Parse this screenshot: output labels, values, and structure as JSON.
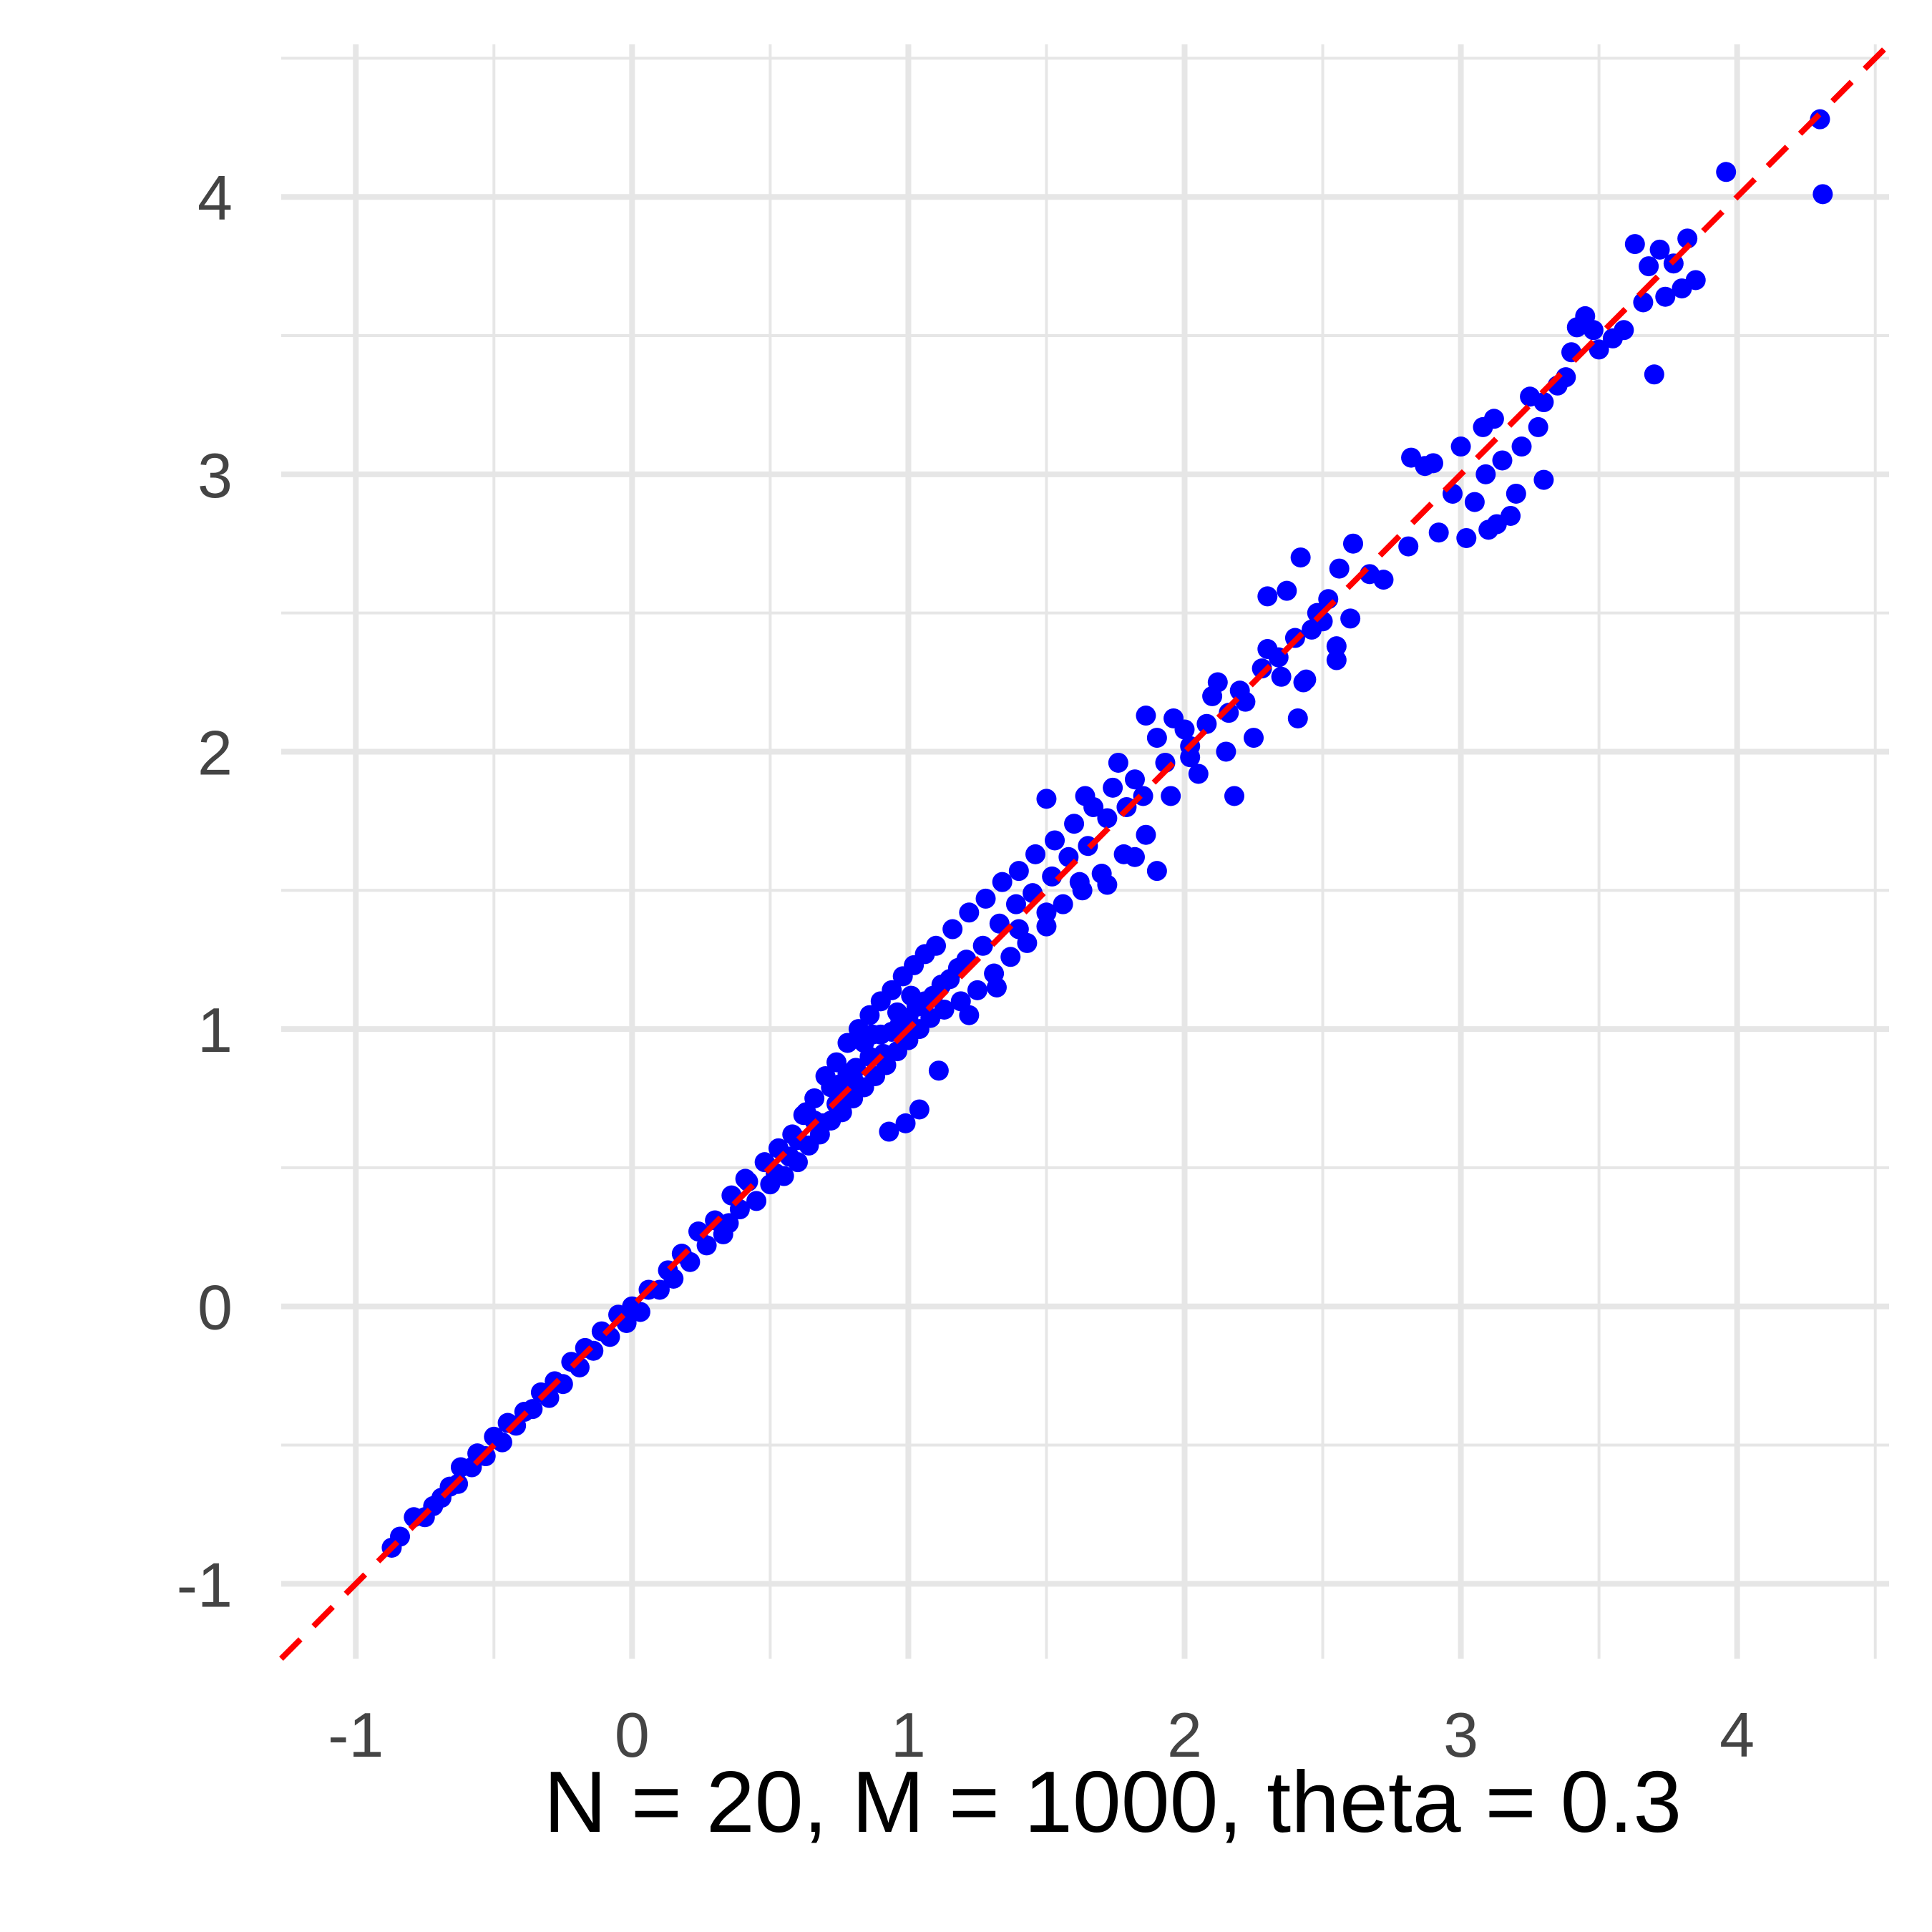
{
  "chart_data": {
    "type": "scatter",
    "title": "",
    "xlabel": "N = 20, M = 1000, theta = 0.3",
    "ylabel": "",
    "xlim": [
      -1.27,
      4.55
    ],
    "ylim": [
      -1.27,
      4.55
    ],
    "x_ticks": [
      -1,
      0,
      1,
      2,
      3,
      4
    ],
    "y_ticks": [
      -1,
      0,
      1,
      2,
      3,
      4
    ],
    "x_tick_labels": [
      "-1",
      "0",
      "1",
      "2",
      "3",
      "4"
    ],
    "y_tick_labels": [
      "-1",
      "0",
      "1",
      "2",
      "3",
      "4"
    ],
    "grid": true,
    "legend": "none",
    "reference_line": {
      "slope": 1,
      "intercept": 0,
      "style": "dashed",
      "color": "#ff0000"
    },
    "point_color": "#0000ff",
    "series": [
      {
        "points": [
          [
            -0.87,
            -0.87
          ],
          [
            -0.84,
            -0.83
          ],
          [
            -0.79,
            -0.76
          ],
          [
            -0.75,
            -0.76
          ],
          [
            -0.72,
            -0.72
          ],
          [
            -0.69,
            -0.69
          ],
          [
            -0.66,
            -0.65
          ],
          [
            -0.63,
            -0.64
          ],
          [
            -0.62,
            -0.58
          ],
          [
            -0.58,
            -0.58
          ],
          [
            -0.56,
            -0.53
          ],
          [
            -0.53,
            -0.54
          ],
          [
            -0.5,
            -0.47
          ],
          [
            -0.47,
            -0.49
          ],
          [
            -0.45,
            -0.42
          ],
          [
            -0.42,
            -0.43
          ],
          [
            -0.39,
            -0.38
          ],
          [
            -0.36,
            -0.37
          ],
          [
            -0.33,
            -0.31
          ],
          [
            -0.3,
            -0.33
          ],
          [
            -0.28,
            -0.27
          ],
          [
            -0.25,
            -0.28
          ],
          [
            -0.22,
            -0.2
          ],
          [
            -0.19,
            -0.22
          ],
          [
            -0.17,
            -0.15
          ],
          [
            -0.14,
            -0.16
          ],
          [
            -0.11,
            -0.09
          ],
          [
            -0.08,
            -0.11
          ],
          [
            -0.05,
            -0.03
          ],
          [
            -0.02,
            -0.06
          ],
          [
            0.0,
            0.0
          ],
          [
            0.03,
            -0.02
          ],
          [
            0.06,
            0.06
          ],
          [
            0.1,
            0.06
          ],
          [
            0.13,
            0.13
          ],
          [
            0.15,
            0.1
          ],
          [
            0.18,
            0.19
          ],
          [
            0.21,
            0.16
          ],
          [
            0.24,
            0.27
          ],
          [
            0.27,
            0.22
          ],
          [
            0.3,
            0.31
          ],
          [
            0.33,
            0.26
          ],
          [
            0.36,
            0.4
          ],
          [
            0.39,
            0.35
          ],
          [
            0.42,
            0.45
          ],
          [
            0.45,
            0.38
          ],
          [
            0.48,
            0.52
          ],
          [
            0.5,
            0.44
          ],
          [
            0.53,
            0.57
          ],
          [
            0.55,
            0.47
          ],
          [
            0.58,
            0.62
          ],
          [
            0.6,
            0.52
          ],
          [
            0.62,
            0.69
          ],
          [
            0.64,
            0.58
          ],
          [
            0.66,
            0.75
          ],
          [
            0.68,
            0.62
          ],
          [
            0.7,
            0.83
          ],
          [
            0.72,
            0.67
          ],
          [
            0.74,
            0.88
          ],
          [
            0.76,
            0.7
          ],
          [
            0.78,
            0.95
          ],
          [
            0.8,
            0.75
          ],
          [
            0.82,
            1.0
          ],
          [
            0.84,
            0.79
          ],
          [
            0.86,
            1.05
          ],
          [
            0.88,
            0.83
          ],
          [
            0.9,
            1.1
          ],
          [
            0.92,
            0.87
          ],
          [
            0.94,
            1.14
          ],
          [
            0.96,
            0.92
          ],
          [
            0.98,
            1.19
          ],
          [
            1.0,
            0.96
          ],
          [
            1.02,
            1.23
          ],
          [
            1.04,
            1.0
          ],
          [
            1.06,
            1.27
          ],
          [
            1.08,
            1.04
          ],
          [
            1.1,
            1.3
          ],
          [
            1.13,
            1.07
          ],
          [
            1.16,
            1.36
          ],
          [
            1.19,
            1.1
          ],
          [
            1.22,
            1.42
          ],
          [
            1.25,
            1.14
          ],
          [
            1.28,
            1.47
          ],
          [
            1.31,
            1.2
          ],
          [
            1.34,
            1.53
          ],
          [
            1.37,
            1.26
          ],
          [
            1.4,
            1.57
          ],
          [
            1.43,
            1.31
          ],
          [
            1.46,
            1.63
          ],
          [
            1.5,
            1.37
          ],
          [
            1.53,
            1.68
          ],
          [
            1.56,
            1.45
          ],
          [
            1.6,
            1.74
          ],
          [
            1.63,
            1.5
          ],
          [
            1.67,
            1.8
          ],
          [
            1.7,
            1.56
          ],
          [
            1.74,
            1.87
          ],
          [
            1.78,
            1.63
          ],
          [
            1.82,
            1.9
          ],
          [
            1.86,
            1.7
          ],
          [
            1.9,
            2.05
          ],
          [
            1.95,
            1.84
          ],
          [
            2.0,
            2.08
          ],
          [
            2.05,
            1.92
          ],
          [
            2.1,
            2.2
          ],
          [
            2.15,
            2.0
          ],
          [
            2.2,
            2.22
          ],
          [
            2.25,
            2.05
          ],
          [
            2.3,
            2.37
          ],
          [
            2.35,
            2.27
          ],
          [
            2.4,
            2.41
          ],
          [
            2.44,
            2.26
          ],
          [
            2.48,
            2.5
          ],
          [
            2.52,
            2.55
          ],
          [
            2.55,
            2.38
          ],
          [
            2.6,
            2.48
          ],
          [
            0.93,
            0.63
          ],
          [
            0.99,
            0.66
          ],
          [
            1.04,
            0.71
          ],
          [
            1.11,
            0.85
          ],
          [
            1.22,
            1.05
          ],
          [
            1.32,
            1.15
          ],
          [
            1.4,
            1.36
          ],
          [
            1.5,
            1.42
          ],
          [
            1.62,
            1.53
          ],
          [
            1.72,
            1.52
          ],
          [
            1.82,
            1.62
          ],
          [
            1.9,
            1.57
          ],
          [
            2.02,
            1.98
          ],
          [
            2.18,
            1.84
          ],
          [
            2.41,
            2.12
          ],
          [
            2.43,
            2.25
          ],
          [
            2.55,
            2.33
          ],
          [
            2.67,
            2.64
          ],
          [
            1.5,
            1.83
          ],
          [
            1.64,
            1.84
          ],
          [
            1.76,
            1.96
          ],
          [
            1.86,
            2.13
          ],
          [
            1.96,
            2.12
          ],
          [
            2.12,
            2.25
          ],
          [
            2.3,
            2.56
          ],
          [
            2.37,
            2.58
          ],
          [
            2.42,
            2.7
          ],
          [
            2.56,
            2.66
          ],
          [
            2.61,
            2.75
          ],
          [
            2.72,
            2.62
          ],
          [
            2.81,
            2.74
          ],
          [
            2.82,
            3.06
          ],
          [
            2.87,
            3.03
          ],
          [
            2.9,
            3.04
          ],
          [
            2.92,
            2.79
          ],
          [
            2.97,
            2.93
          ],
          [
            3.0,
            3.1
          ],
          [
            3.02,
            2.77
          ],
          [
            3.05,
            2.9
          ],
          [
            3.08,
            3.17
          ],
          [
            3.09,
            3.0
          ],
          [
            3.1,
            2.8
          ],
          [
            3.12,
            3.2
          ],
          [
            3.13,
            2.82
          ],
          [
            3.15,
            3.05
          ],
          [
            3.18,
            2.85
          ],
          [
            3.2,
            2.93
          ],
          [
            3.22,
            3.1
          ],
          [
            3.25,
            3.28
          ],
          [
            3.28,
            3.17
          ],
          [
            3.3,
            3.26
          ],
          [
            3.3,
            2.98
          ],
          [
            3.35,
            3.32
          ],
          [
            3.38,
            3.35
          ],
          [
            3.4,
            3.44
          ],
          [
            3.42,
            3.53
          ],
          [
            3.45,
            3.57
          ],
          [
            3.48,
            3.52
          ],
          [
            3.5,
            3.45
          ],
          [
            3.55,
            3.49
          ],
          [
            3.59,
            3.52
          ],
          [
            3.63,
            3.83
          ],
          [
            3.66,
            3.62
          ],
          [
            3.68,
            3.75
          ],
          [
            3.7,
            3.36
          ],
          [
            3.72,
            3.81
          ],
          [
            3.74,
            3.64
          ],
          [
            3.77,
            3.76
          ],
          [
            3.8,
            3.67
          ],
          [
            3.82,
            3.85
          ],
          [
            3.85,
            3.7
          ],
          [
            3.96,
            4.09
          ],
          [
            4.3,
            4.28
          ],
          [
            4.31,
            4.01
          ],
          [
            0.35,
            0.3
          ],
          [
            0.41,
            0.46
          ],
          [
            0.52,
            0.48
          ],
          [
            0.57,
            0.54
          ],
          [
            0.63,
            0.7
          ],
          [
            0.69,
            0.66
          ],
          [
            0.75,
            0.8
          ],
          [
            0.81,
            0.86
          ],
          [
            0.87,
            0.98
          ],
          [
            0.91,
            0.91
          ],
          [
            0.97,
            1.02
          ],
          [
            1.03,
            1.08
          ],
          [
            1.09,
            1.12
          ],
          [
            1.15,
            1.18
          ],
          [
            1.21,
            1.25
          ],
          [
            1.27,
            1.3
          ],
          [
            1.33,
            1.38
          ],
          [
            1.39,
            1.45
          ],
          [
            1.45,
            1.49
          ],
          [
            1.52,
            1.55
          ],
          [
            1.58,
            1.62
          ],
          [
            1.65,
            1.66
          ],
          [
            1.72,
            1.76
          ],
          [
            1.79,
            1.8
          ],
          [
            1.85,
            1.84
          ],
          [
            1.93,
            1.96
          ],
          [
            2.02,
            2.02
          ],
          [
            2.08,
            2.1
          ],
          [
            2.16,
            2.14
          ],
          [
            2.22,
            2.18
          ],
          [
            2.28,
            2.3
          ],
          [
            2.34,
            2.34
          ],
          [
            2.46,
            2.44
          ],
          [
            2.5,
            2.47
          ],
          [
            0.72,
            0.79
          ],
          [
            0.78,
            0.84
          ],
          [
            0.84,
            0.95
          ],
          [
            0.9,
            0.98
          ],
          [
            0.96,
            1.06
          ],
          [
            1.01,
            1.12
          ],
          [
            0.6,
            0.6
          ],
          [
            0.66,
            0.67
          ],
          [
            0.74,
            0.73
          ],
          [
            0.8,
            0.82
          ],
          [
            0.86,
            0.9
          ],
          [
            0.94,
            0.99
          ],
          [
            1.0,
            1.04
          ],
          [
            1.06,
            1.1
          ],
          [
            1.12,
            1.16
          ],
          [
            1.18,
            1.22
          ]
        ]
      }
    ]
  }
}
